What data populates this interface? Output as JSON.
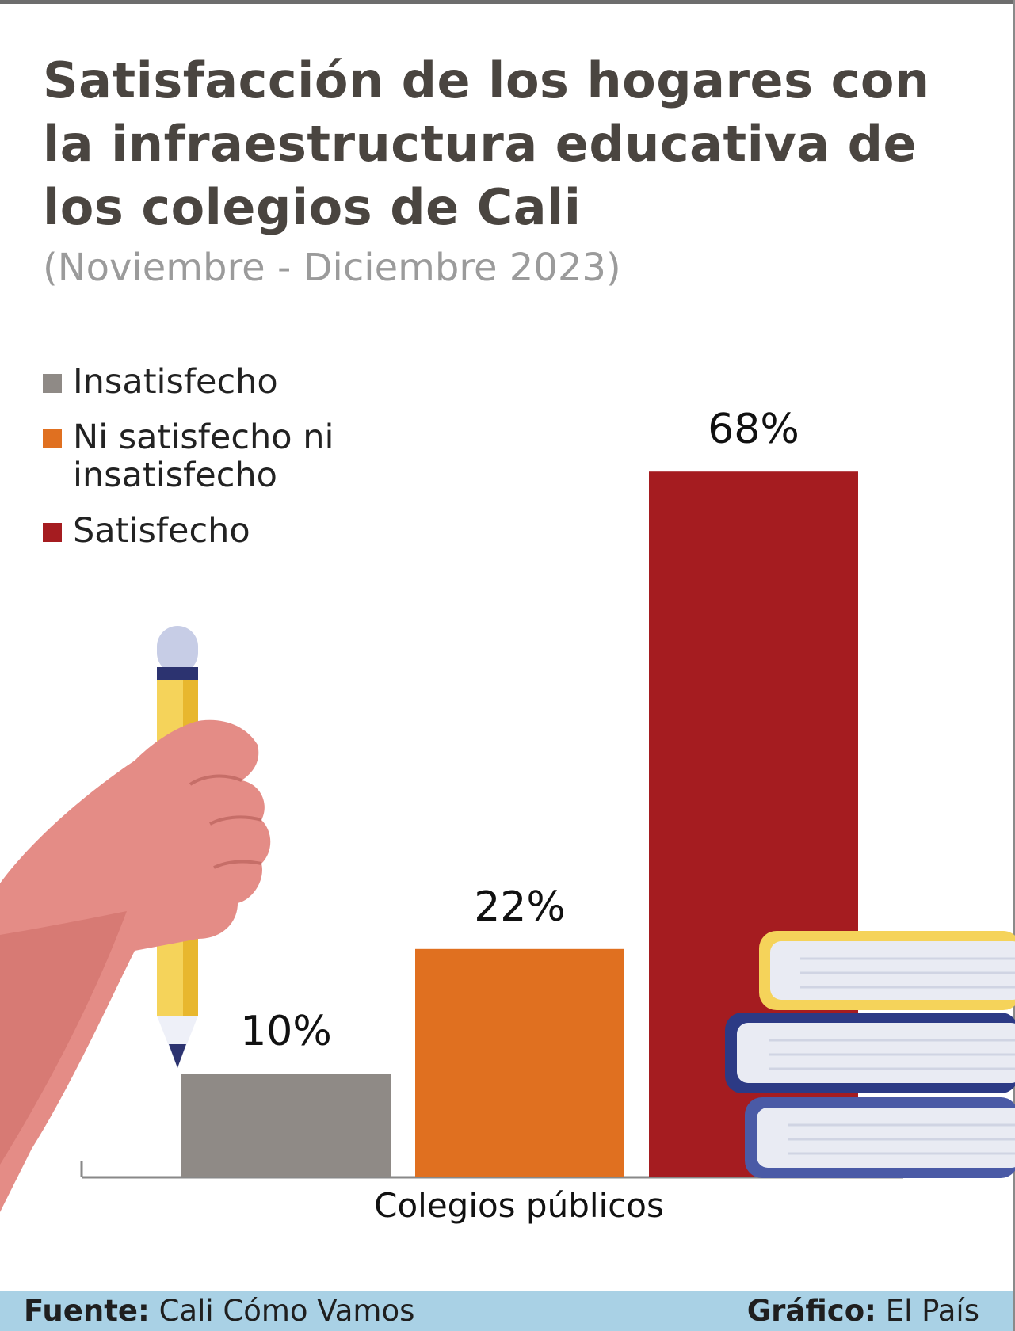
{
  "title": "Satisfacción de los hogares con la infraestructura educativa de los colegios de Cali",
  "subtitle": "(Noviembre - Diciembre 2023)",
  "legend": [
    {
      "label": "Insatisfecho",
      "color": "#8f8a86"
    },
    {
      "label": "Ni satisfecho ni insatisfecho",
      "color": "#e07020"
    },
    {
      "label": "Satisfecho",
      "color": "#a51c20"
    }
  ],
  "chart_data": {
    "type": "bar",
    "categories": [
      "Colegios públicos"
    ],
    "series": [
      {
        "name": "Insatisfecho",
        "values": [
          10
        ],
        "color": "#8f8a86"
      },
      {
        "name": "Ni satisfecho ni insatisfecho",
        "values": [
          22
        ],
        "color": "#e07020"
      },
      {
        "name": "Satisfecho",
        "values": [
          68
        ],
        "color": "#a51c20"
      }
    ],
    "data_labels": [
      "10%",
      "22%",
      "68%"
    ],
    "xlabel": "Colegios públicos",
    "ylabel": "",
    "ylim": [
      0,
      100
    ],
    "grid": false,
    "legend_position": "top-left"
  },
  "footer": {
    "source_label": "Fuente:",
    "source_value": "Cali Cómo Vamos",
    "credit_label": "Gráfico:",
    "credit_value": "El País"
  }
}
